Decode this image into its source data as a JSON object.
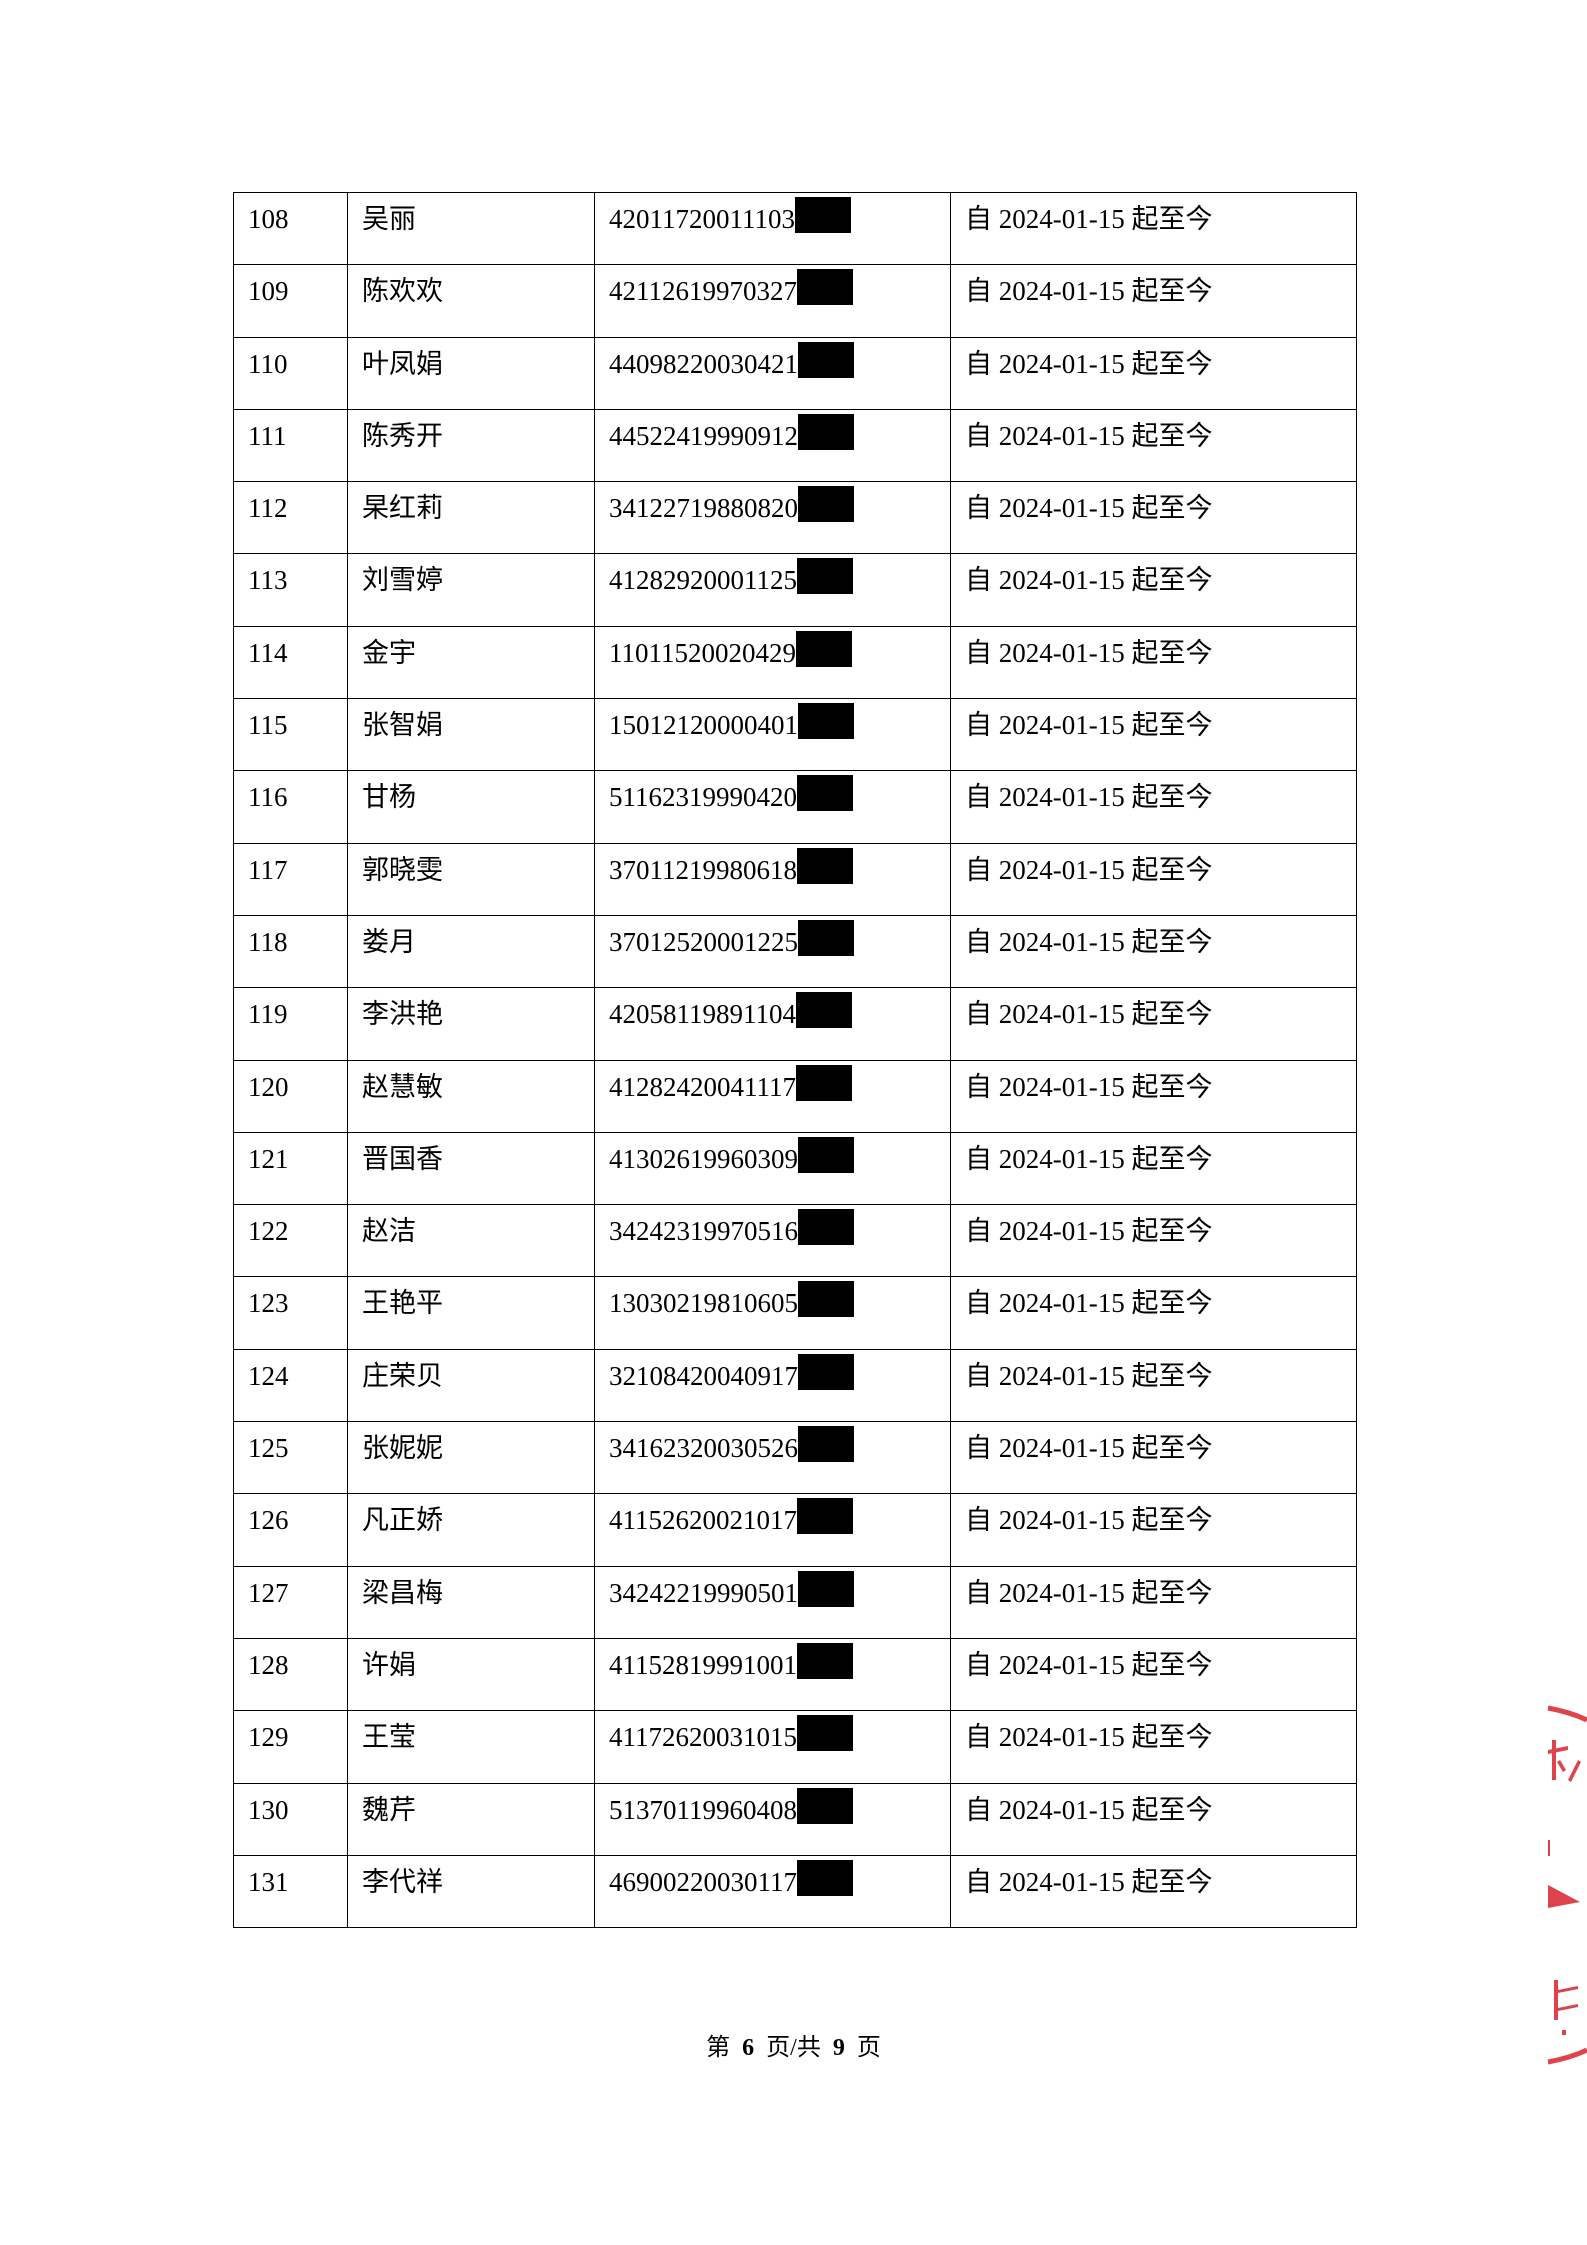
{
  "rows": [
    {
      "no": "108",
      "name": "吴丽",
      "id": "42011720011103",
      "period": "自 2024-01-15 起至今"
    },
    {
      "no": "109",
      "name": "陈欢欢",
      "id": "42112619970327",
      "period": "自 2024-01-15 起至今"
    },
    {
      "no": "110",
      "name": "叶凤娟",
      "id": "44098220030421",
      "period": "自 2024-01-15 起至今"
    },
    {
      "no": "111",
      "name": "陈秀开",
      "id": "44522419990912",
      "period": "自 2024-01-15 起至今"
    },
    {
      "no": "112",
      "name": "杲红莉",
      "id": "34122719880820",
      "period": "自 2024-01-15 起至今"
    },
    {
      "no": "113",
      "name": "刘雪婷",
      "id": "41282920001125",
      "period": "自 2024-01-15 起至今"
    },
    {
      "no": "114",
      "name": "金宇",
      "id": "11011520020429",
      "period": "自 2024-01-15 起至今"
    },
    {
      "no": "115",
      "name": "张智娟",
      "id": "15012120000401",
      "period": "自 2024-01-15 起至今"
    },
    {
      "no": "116",
      "name": "甘杨",
      "id": "51162319990420",
      "period": "自 2024-01-15 起至今"
    },
    {
      "no": "117",
      "name": "郭晓雯",
      "id": "37011219980618",
      "period": "自 2024-01-15 起至今"
    },
    {
      "no": "118",
      "name": "娄月",
      "id": "37012520001225",
      "period": "自 2024-01-15 起至今"
    },
    {
      "no": "119",
      "name": "李洪艳",
      "id": "42058119891104",
      "period": "自 2024-01-15 起至今"
    },
    {
      "no": "120",
      "name": "赵慧敏",
      "id": "41282420041117",
      "period": "自 2024-01-15 起至今"
    },
    {
      "no": "121",
      "name": "晋国香",
      "id": "41302619960309",
      "period": "自 2024-01-15 起至今"
    },
    {
      "no": "122",
      "name": "赵洁",
      "id": "34242319970516",
      "period": "自 2024-01-15 起至今"
    },
    {
      "no": "123",
      "name": "王艳平",
      "id": "13030219810605",
      "period": "自 2024-01-15 起至今"
    },
    {
      "no": "124",
      "name": "庄荣贝",
      "id": "32108420040917",
      "period": "自 2024-01-15 起至今"
    },
    {
      "no": "125",
      "name": "张妮妮",
      "id": "34162320030526",
      "period": "自 2024-01-15 起至今"
    },
    {
      "no": "126",
      "name": "凡正娇",
      "id": "41152620021017",
      "period": "自 2024-01-15 起至今"
    },
    {
      "no": "127",
      "name": "梁昌梅",
      "id": "34242219990501",
      "period": "自 2024-01-15 起至今"
    },
    {
      "no": "128",
      "name": "许娟",
      "id": "41152819991001",
      "period": "自 2024-01-15 起至今"
    },
    {
      "no": "129",
      "name": "王莹",
      "id": "41172620031015",
      "period": "自 2024-01-15 起至今"
    },
    {
      "no": "130",
      "name": "魏芹",
      "id": "51370119960408",
      "period": "自 2024-01-15 起至今"
    },
    {
      "no": "131",
      "name": "李代祥",
      "id": "46900220030117",
      "period": "自 2024-01-15 起至今"
    }
  ],
  "footer": {
    "prefix": "第",
    "page": "6",
    "middle": "页/共",
    "total": "9",
    "suffix": "页"
  },
  "colors": {
    "stamp": "#d9232e",
    "redaction": "#000000"
  }
}
